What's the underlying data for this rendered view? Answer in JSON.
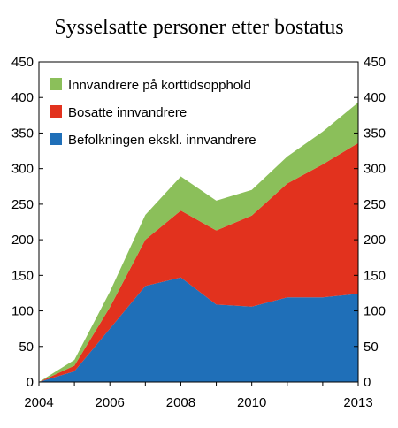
{
  "chart_data": {
    "type": "area",
    "stacked": true,
    "title": "Sysselsatte personer etter bostatus",
    "xlabel": "",
    "ylabel": "",
    "x": [
      2004,
      2005,
      2006,
      2007,
      2008,
      2009,
      2010,
      2011,
      2012,
      2013
    ],
    "x_tick_labels": [
      "2004",
      "2006",
      "2008",
      "2010",
      "2013"
    ],
    "x_tick_values": [
      2004,
      2006,
      2008,
      2010,
      2013
    ],
    "ylim": [
      0,
      450
    ],
    "y_ticks": [
      0,
      50,
      100,
      150,
      200,
      250,
      300,
      350,
      400,
      450
    ],
    "y_axis_both_sides": true,
    "grid": false,
    "legend_position": "top-left",
    "series": [
      {
        "name": "Befolkningen ekskl. innvandrere",
        "color": "#1f6fb8",
        "values": [
          0,
          15,
          75,
          135,
          147,
          109,
          106,
          119,
          119,
          124
        ]
      },
      {
        "name": "Bosatte innvandrere",
        "color": "#e2321e",
        "values": [
          0,
          8,
          30,
          65,
          94,
          104,
          128,
          160,
          187,
          212
        ]
      },
      {
        "name": "Innvandrere på korttidsopphold",
        "color": "#8bbf5a",
        "values": [
          0,
          8,
          22,
          35,
          48,
          42,
          36,
          38,
          46,
          57
        ]
      }
    ],
    "legend_order": [
      "Innvandrere på korttidsopphold",
      "Bosatte innvandrere",
      "Befolkningen ekskl. innvandrere"
    ]
  }
}
